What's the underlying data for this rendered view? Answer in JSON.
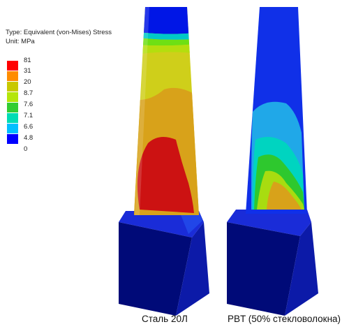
{
  "legend": {
    "type_line": "Type: Equivalent (von-Mises) Stress",
    "unit_line": "Unit: MPa",
    "ticks": [
      "81",
      "31",
      "20",
      "8.7",
      "7.6",
      "7.1",
      "6.6",
      "4.8",
      "0"
    ],
    "colors": [
      "#ff0000",
      "#ff8c00",
      "#c8c800",
      "#b4e60a",
      "#32cd32",
      "#00dcb4",
      "#00bfff",
      "#0000ff"
    ]
  },
  "models": [
    {
      "caption": "Сталь 20Л"
    },
    {
      "caption": "PBT (50% стекловолокна)"
    }
  ]
}
